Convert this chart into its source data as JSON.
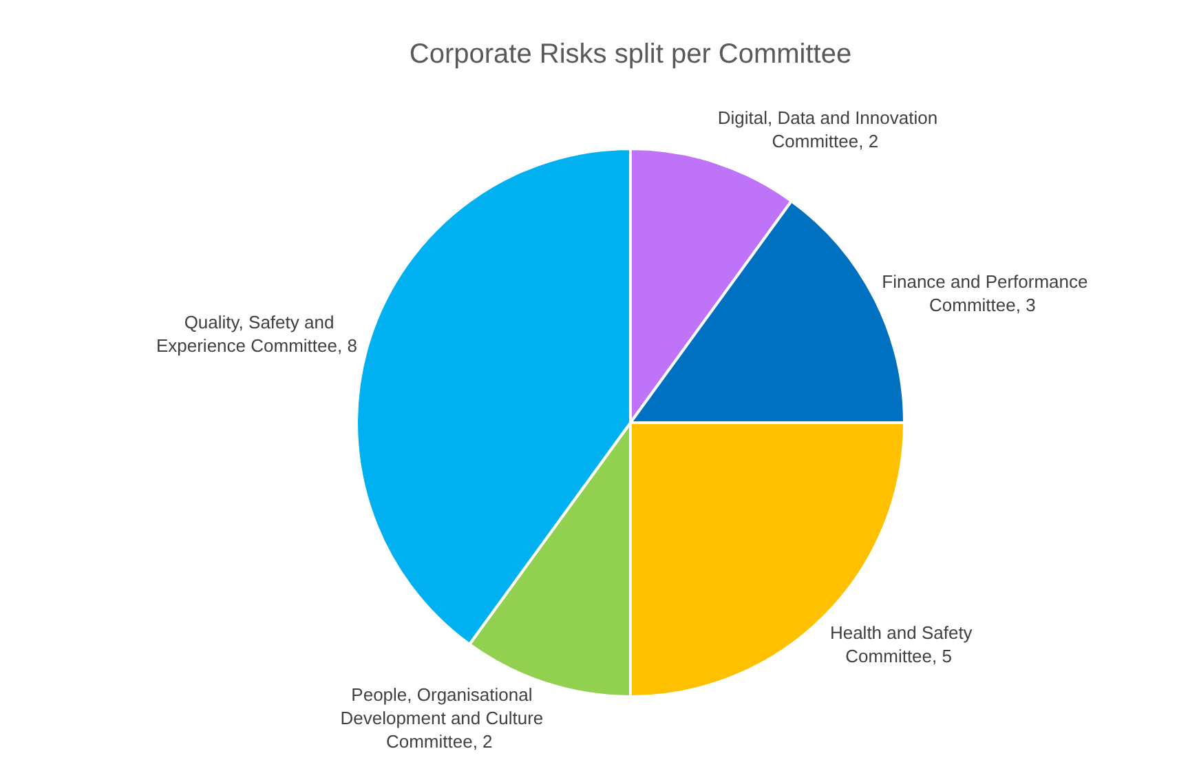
{
  "chart_data": {
    "type": "pie",
    "title": "Corporate Risks split per Committee",
    "categories": [
      "Digital, Data and Innovation Committee",
      "Finance and Performance Committee",
      "Health and Safety Committee",
      "People, Organisational Development and Culture Committee",
      "Quality, Safety and Experience Committee"
    ],
    "values": [
      2,
      3,
      5,
      2,
      8
    ],
    "colors": [
      "#bf73f8",
      "#0070c0",
      "#ffc000",
      "#92d050",
      "#00b0f0"
    ],
    "value_labels": [
      ", 2",
      ", 3",
      ", 5",
      ", 2",
      ", 8"
    ],
    "legend": false
  }
}
